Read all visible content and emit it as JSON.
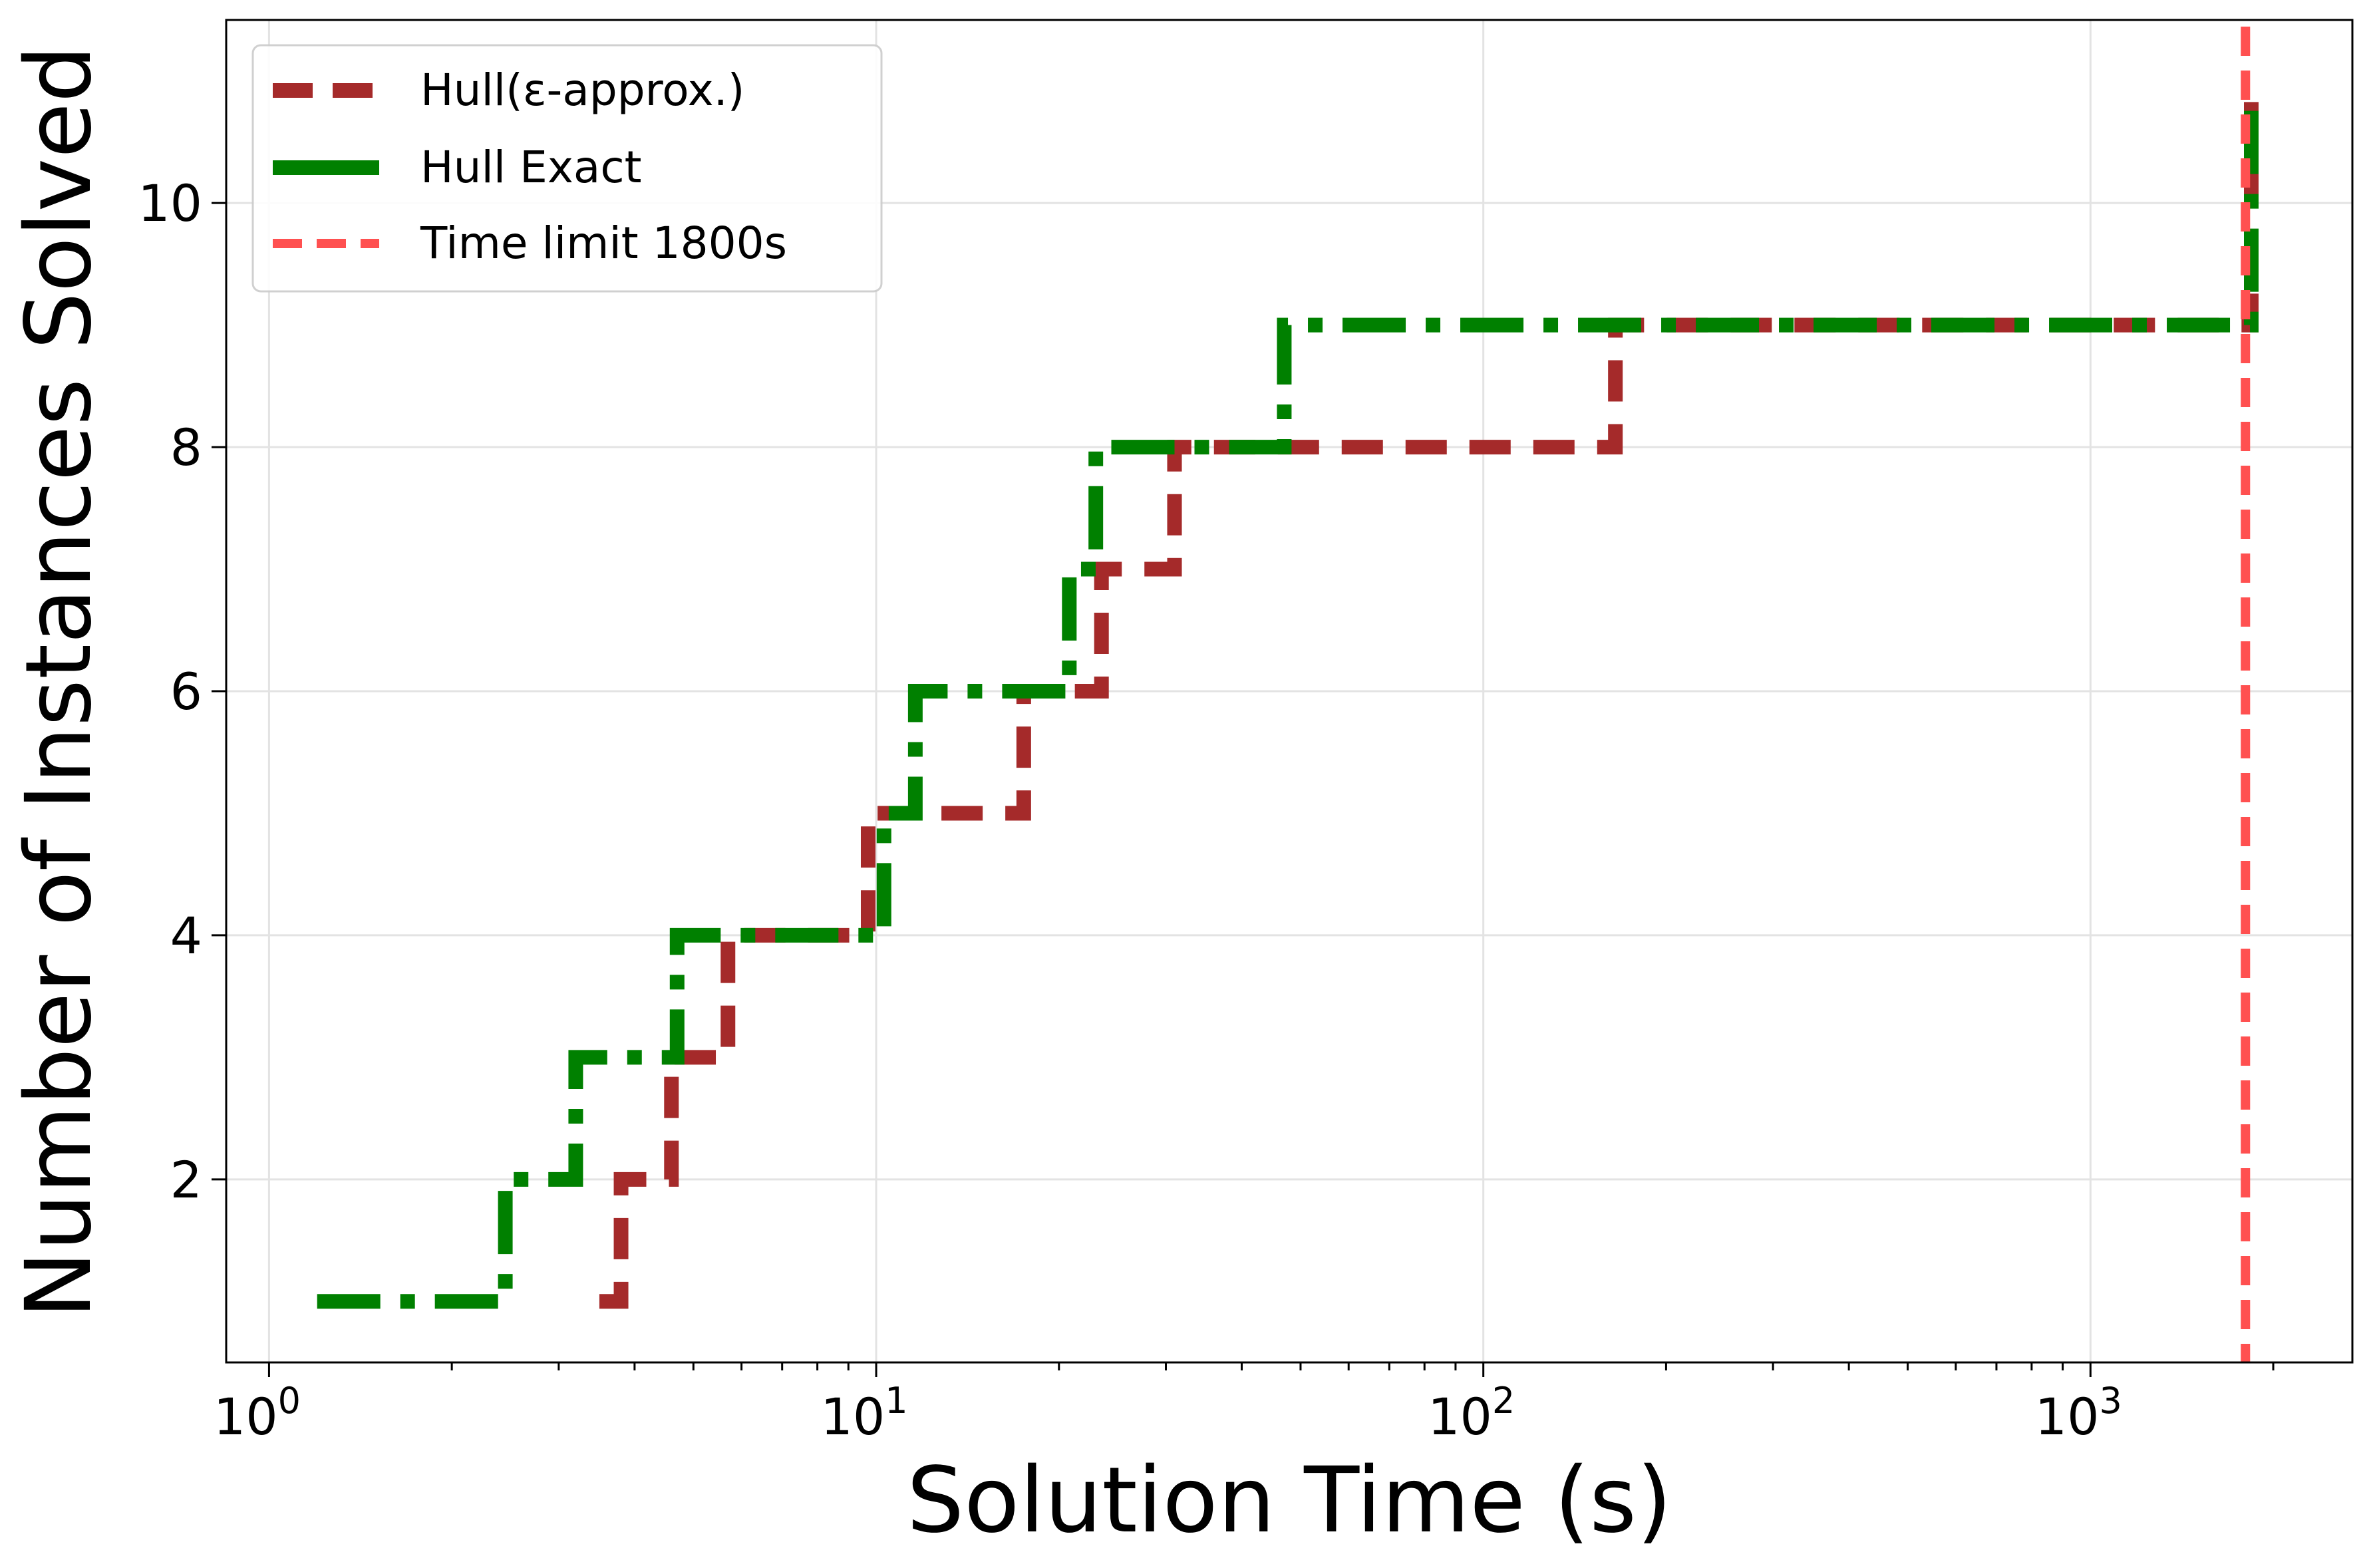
{
  "chart_data": {
    "type": "line",
    "title": "",
    "xlabel": "Solution Time (s)",
    "ylabel": "Number of Instances Solved",
    "xscale": "log",
    "xlim": [
      0.85,
      2700
    ],
    "ylim": [
      0.5,
      11.5
    ],
    "grid": true,
    "legend_position": "top-left",
    "x_ticks": [
      {
        "value": 1,
        "base": "10",
        "exp": "0"
      },
      {
        "value": 10,
        "base": "10",
        "exp": "1"
      },
      {
        "value": 100,
        "base": "10",
        "exp": "2"
      },
      {
        "value": 1000,
        "base": "10",
        "exp": "3"
      }
    ],
    "y_ticks": [
      2,
      4,
      6,
      8,
      10
    ],
    "series": [
      {
        "name": "Hull(ε-approx.)",
        "color": "#a52a2a",
        "dash": "long-dash",
        "x": [
          3.5,
          3.8,
          4.6,
          5.7,
          9.7,
          17.5,
          23.5,
          31,
          165,
          1840
        ],
        "y": [
          1,
          2,
          3,
          4,
          5,
          6,
          7,
          8,
          9,
          10
        ]
      },
      {
        "name": "Hull Exact",
        "color": "#008000",
        "dash": "dash-dot",
        "x": [
          1.2,
          2.45,
          3.2,
          4.7,
          10.3,
          11.6,
          20.8,
          23,
          47,
          1840
        ],
        "y": [
          1,
          2,
          3,
          4,
          5,
          6,
          7,
          8,
          9,
          10
        ]
      }
    ],
    "reference_lines": [
      {
        "name": "Time limit 1800s",
        "x": 1800,
        "color": "#ff5050",
        "dash": "dashed"
      }
    ]
  }
}
